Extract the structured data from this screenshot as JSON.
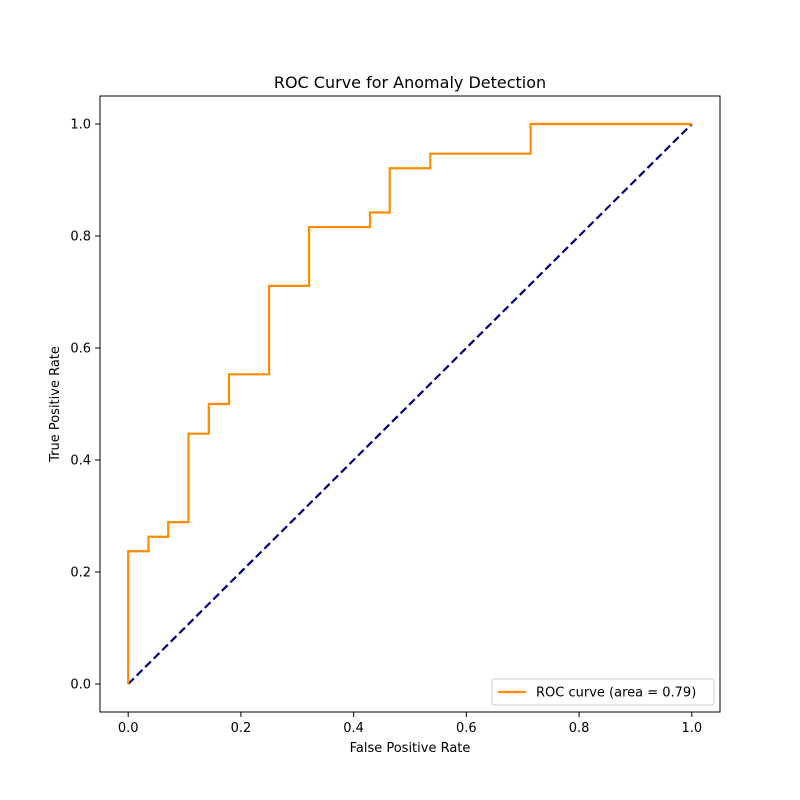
{
  "chart_data": {
    "type": "line",
    "title": "ROC Curve for Anomaly Detection",
    "xlabel": "False Positive Rate",
    "ylabel": "True Positive Rate",
    "xlim": [
      -0.05,
      1.05
    ],
    "ylim": [
      -0.05,
      1.05
    ],
    "x_ticks": [
      0.0,
      0.2,
      0.4,
      0.6,
      0.8,
      1.0
    ],
    "y_ticks": [
      0.0,
      0.2,
      0.4,
      0.6,
      0.8,
      1.0
    ],
    "x_tick_labels": [
      "0.0",
      "0.2",
      "0.4",
      "0.6",
      "0.8",
      "1.0"
    ],
    "y_tick_labels": [
      "0.0",
      "0.2",
      "0.4",
      "0.6",
      "0.8",
      "1.0"
    ],
    "grid": false,
    "legend_position": "lower-right",
    "series": [
      {
        "name": "ROC curve (area = 0.79)",
        "color": "#ff8c00",
        "style": "solid",
        "x": [
          0.0,
          0.0,
          0.036,
          0.036,
          0.071,
          0.071,
          0.107,
          0.107,
          0.143,
          0.143,
          0.179,
          0.179,
          0.25,
          0.25,
          0.321,
          0.321,
          0.429,
          0.429,
          0.464,
          0.464,
          0.536,
          0.536,
          0.714,
          0.714,
          1.0
        ],
        "y": [
          0.0,
          0.237,
          0.237,
          0.263,
          0.263,
          0.289,
          0.289,
          0.447,
          0.447,
          0.5,
          0.5,
          0.553,
          0.553,
          0.711,
          0.711,
          0.816,
          0.816,
          0.842,
          0.842,
          0.921,
          0.921,
          0.947,
          0.947,
          1.0,
          1.0
        ]
      },
      {
        "color": "#000080",
        "style": "dashed",
        "x": [
          0.0,
          1.0
        ],
        "y": [
          0.0,
          1.0
        ]
      }
    ]
  }
}
